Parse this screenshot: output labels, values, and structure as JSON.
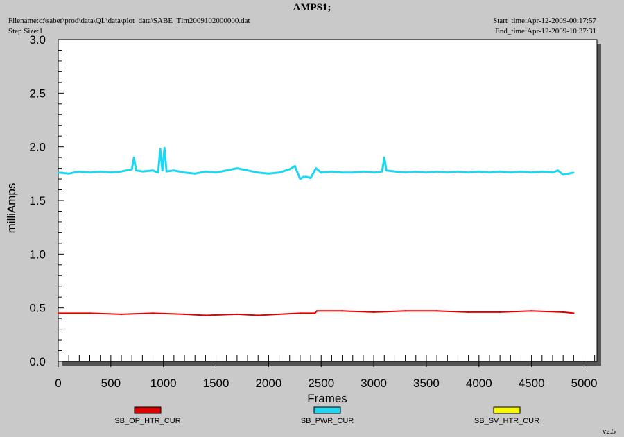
{
  "header": {
    "title": "AMPS1;",
    "filename": "Filename:c:\\saber\\prod\\data\\QL\\data\\plot_data\\SABE_Tlm2009102000000.dat",
    "step_size": "Step Size:1",
    "start_time": "Start_time:Apr-12-2009-00:17:57",
    "end_time": "End_time:Apr-12-2009-10:37:31"
  },
  "version": "v2.5",
  "chart_data": {
    "type": "line",
    "title": "AMPS1;",
    "xlabel": "Frames",
    "ylabel": "milliAmps",
    "xlim": [
      0,
      5100
    ],
    "ylim": [
      0.0,
      3.0
    ],
    "x_ticks": [
      "0",
      "500",
      "1000",
      "1500",
      "2000",
      "2500",
      "3000",
      "3500",
      "4000",
      "4500",
      "5000"
    ],
    "y_ticks": [
      "0.0",
      "0.5",
      "1.0",
      "1.5",
      "2.0",
      "2.5",
      "3.0"
    ],
    "legend_position": "bottom",
    "series": [
      {
        "name": "SB_OP_HTR_CUR",
        "color": "#e00000",
        "x": [
          0,
          300,
          600,
          900,
          1200,
          1400,
          1700,
          1900,
          2100,
          2300,
          2440,
          2460,
          2700,
          3000,
          3300,
          3600,
          3900,
          4200,
          4500,
          4800,
          4900
        ],
        "y": [
          0.45,
          0.45,
          0.44,
          0.45,
          0.44,
          0.43,
          0.44,
          0.43,
          0.44,
          0.45,
          0.45,
          0.47,
          0.47,
          0.46,
          0.47,
          0.47,
          0.46,
          0.46,
          0.47,
          0.46,
          0.45
        ]
      },
      {
        "name": "SB_PWR_CUR",
        "color": "#1ed6f0",
        "x": [
          0,
          100,
          200,
          300,
          400,
          500,
          600,
          700,
          720,
          740,
          800,
          900,
          950,
          970,
          990,
          1010,
          1030,
          1100,
          1200,
          1300,
          1400,
          1500,
          1600,
          1700,
          1800,
          1900,
          2000,
          2100,
          2200,
          2250,
          2300,
          2330,
          2360,
          2400,
          2450,
          2500,
          2600,
          2700,
          2800,
          2900,
          3000,
          3080,
          3100,
          3120,
          3200,
          3300,
          3400,
          3500,
          3600,
          3700,
          3800,
          3900,
          4000,
          4100,
          4200,
          4300,
          4400,
          4500,
          4600,
          4700,
          4750,
          4800,
          4900
        ],
        "y": [
          1.76,
          1.75,
          1.77,
          1.76,
          1.77,
          1.76,
          1.77,
          1.79,
          1.9,
          1.78,
          1.77,
          1.78,
          1.76,
          1.98,
          1.78,
          1.99,
          1.77,
          1.78,
          1.76,
          1.75,
          1.77,
          1.76,
          1.78,
          1.8,
          1.78,
          1.76,
          1.75,
          1.76,
          1.79,
          1.82,
          1.7,
          1.72,
          1.72,
          1.71,
          1.8,
          1.76,
          1.77,
          1.76,
          1.76,
          1.77,
          1.76,
          1.77,
          1.9,
          1.78,
          1.77,
          1.76,
          1.77,
          1.76,
          1.77,
          1.76,
          1.77,
          1.76,
          1.77,
          1.76,
          1.77,
          1.76,
          1.77,
          1.76,
          1.77,
          1.76,
          1.78,
          1.74,
          1.76
        ]
      },
      {
        "name": "SB_SV_HTR_CUR",
        "color": "#f8f800",
        "x": [],
        "y": []
      }
    ]
  }
}
